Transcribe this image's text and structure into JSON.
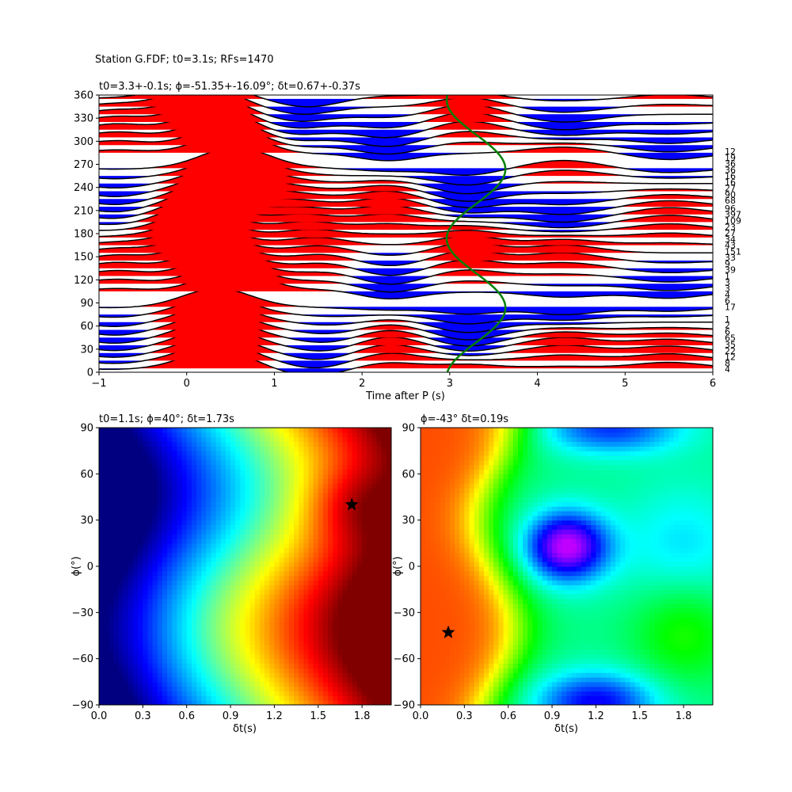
{
  "figure": {
    "suptitle": "Station G.FDF; t0=3.1s; RFs=1470"
  },
  "chart_data": [
    {
      "type": "wiggle",
      "title": "t0=3.3+-0.1s; ϕ=-51.35+-16.09°; δt=0.67+-0.37s",
      "xlabel": "Time after P (s)",
      "ylabel": "",
      "xlim": [
        -1,
        6
      ],
      "ylim": [
        0,
        360
      ],
      "xticks": [
        "−1",
        "0",
        "1",
        "2",
        "3",
        "4",
        "5",
        "6"
      ],
      "yticks": [
        "0",
        "30",
        "60",
        "90",
        "120",
        "150",
        "180",
        "210",
        "240",
        "270",
        "300",
        "330",
        "360"
      ],
      "positive_fill": "#ff0000",
      "negative_fill": "#0000ff",
      "trace_color": "#000000",
      "backazimuths": [
        5,
        15,
        25,
        35,
        45,
        55,
        65,
        75,
        85,
        105,
        115,
        125,
        135,
        145,
        155,
        165,
        175,
        185,
        195,
        205,
        215,
        225,
        235,
        245,
        255,
        265,
        285,
        295,
        305,
        315,
        325,
        335,
        345,
        355
      ],
      "counts": [
        "4",
        "8",
        "12",
        "22",
        "35",
        "65",
        "6",
        "2",
        "1",
        "17",
        "6",
        "4",
        "3",
        "3",
        "1",
        "39",
        "9",
        "33",
        "151",
        "43",
        "34",
        "27",
        "23",
        "109",
        "397",
        "96",
        "68",
        "90",
        "27",
        "16",
        "16",
        "36",
        "36",
        "19",
        "12"
      ],
      "count_positions": [
        4,
        12,
        20,
        28,
        36,
        45,
        53,
        61,
        69,
        85,
        93,
        101,
        109,
        117,
        125,
        133,
        141,
        149,
        157,
        165,
        173,
        181,
        189,
        197,
        205,
        213,
        223,
        231,
        239,
        247,
        255,
        263,
        271,
        279,
        287
      ],
      "moveout_curve": {
        "color": "#008000",
        "t0": 3.3,
        "amplitude": 0.67,
        "phi_deg": -51.35
      }
    },
    {
      "type": "heatmap",
      "title": "t0=1.1s; ϕ=40°; δt=1.73s",
      "xlabel": "δt(s)",
      "ylabel": "ϕ(°)",
      "xlim": [
        0,
        2
      ],
      "ylim": [
        -90,
        90
      ],
      "xticks": [
        "0.0",
        "0.3",
        "0.6",
        "0.9",
        "1.2",
        "1.5",
        "1.8"
      ],
      "yticks": [
        "−90",
        "−60",
        "−30",
        "0",
        "30",
        "60",
        "90"
      ],
      "colormap": "jet",
      "best": {
        "dt": 1.73,
        "phi": 40
      }
    },
    {
      "type": "heatmap",
      "title": "ϕ=-43° δt=0.19s",
      "xlabel": "δt(s)",
      "ylabel": "ϕ(°)",
      "xlim": [
        0,
        2
      ],
      "ylim": [
        -90,
        90
      ],
      "xticks": [
        "0.0",
        "0.3",
        "0.6",
        "0.9",
        "1.2",
        "1.5",
        "1.8"
      ],
      "yticks": [
        "−90",
        "−60",
        "−30",
        "0",
        "30",
        "60",
        "90"
      ],
      "colormap": "hsv",
      "best": {
        "dt": 0.19,
        "phi": -43
      }
    }
  ]
}
